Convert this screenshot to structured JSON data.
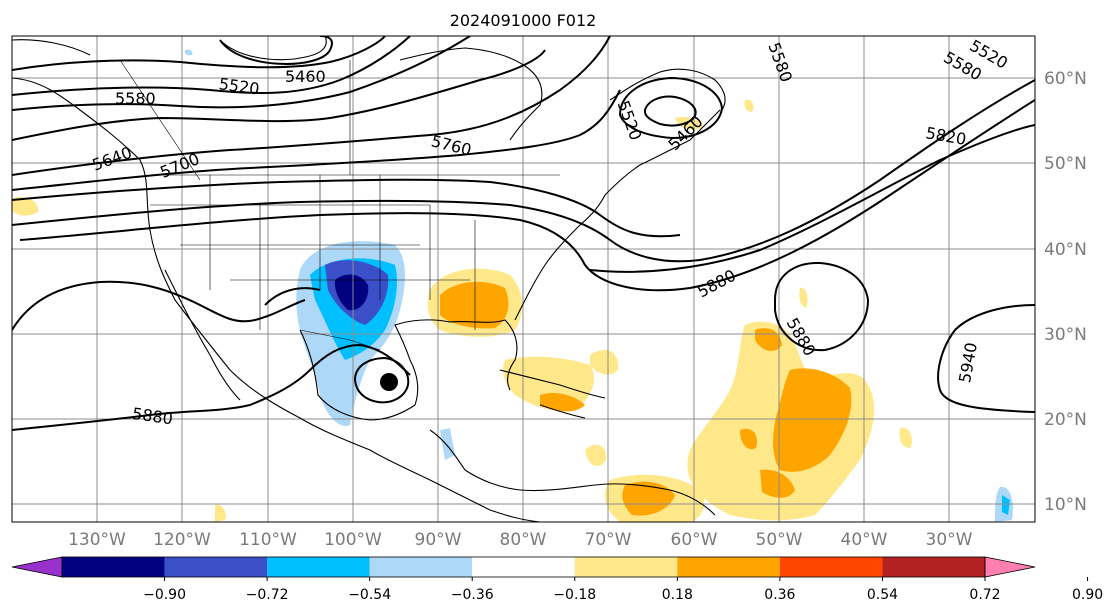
{
  "title": "2024091000 F012",
  "lat_labels": [
    "60°N",
    "50°N",
    "40°N",
    "30°N",
    "20°N",
    "10°N"
  ],
  "lon_labels": [
    "130°W",
    "120°W",
    "110°W",
    "100°W",
    "90°W",
    "80°W",
    "70°W",
    "60°W",
    "50°W",
    "40°W",
    "30°W"
  ],
  "contour_labels": [
    "5460",
    "5520",
    "5580",
    "5640",
    "5700",
    "5760",
    "5820",
    "5880",
    "5940",
    "5520",
    "5580",
    "5580",
    "5520",
    "5460",
    "5880",
    "5880"
  ],
  "colorbar": {
    "ticks": [
      "−0.90",
      "−0.72",
      "−0.54",
      "−0.36",
      "−0.18",
      "0.18",
      "0.36",
      "0.54",
      "0.72",
      "0.90"
    ],
    "colors": [
      "#9932cc",
      "#000080",
      "#3a4fc8",
      "#00bfff",
      "#add8f7",
      "#ffffff",
      "#ffe88a",
      "#ffa500",
      "#ff4500",
      "#b22222",
      "#ff7fb0"
    ]
  },
  "storm_marker": "hurricane-center"
}
